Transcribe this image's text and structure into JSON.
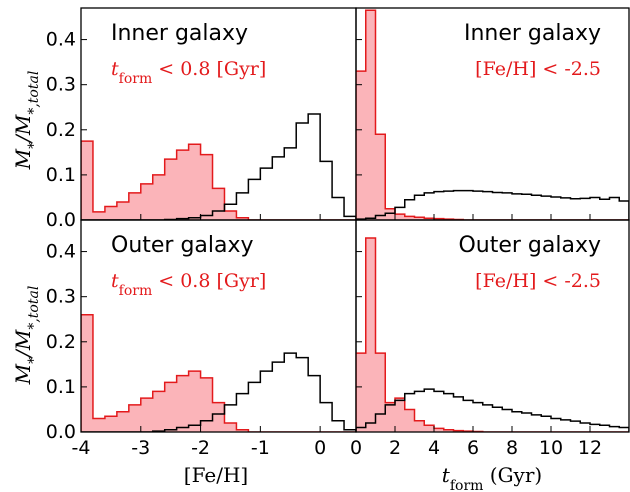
{
  "figure": {
    "y_axis_label": "M*/M*,total",
    "x_axis_labels": [
      "[Fe/H]",
      "t_form (Gyr)"
    ]
  },
  "chart_data": [
    {
      "type": "histogram",
      "panel": "top-left",
      "annotations": [
        "Inner galaxy",
        "t_form < 0.8 [Gyr]"
      ],
      "xlabel": "",
      "ylabel": "M*/M*,total",
      "xlim": [
        -4,
        0.6
      ],
      "ylim": [
        0,
        0.47
      ],
      "yticks": [
        "0.0",
        "0.1",
        "0.2",
        "0.3",
        "0.4"
      ],
      "xticks": [],
      "bin_edges": [
        -4.0,
        -3.8,
        -3.6,
        -3.4,
        -3.2,
        -3.0,
        -2.8,
        -2.6,
        -2.4,
        -2.2,
        -2.0,
        -1.8,
        -1.6,
        -1.4,
        -1.2,
        -1.0,
        -0.8,
        -0.6,
        -0.4,
        -0.2,
        0.0,
        0.2,
        0.4,
        0.6
      ],
      "series": [
        {
          "color": "#e31a1c",
          "fill": "#fbb4b9",
          "values": [
            0.175,
            0.018,
            0.03,
            0.04,
            0.06,
            0.08,
            0.1,
            0.135,
            0.155,
            0.168,
            0.145,
            0.07,
            0.02,
            0.005,
            0,
            0,
            0,
            0,
            0,
            0,
            0,
            0,
            0
          ]
        },
        {
          "color": "#000000",
          "fill": "none",
          "values": [
            0,
            0,
            0,
            0,
            0,
            0,
            0,
            0.001,
            0.003,
            0.005,
            0.01,
            0.02,
            0.035,
            0.06,
            0.09,
            0.115,
            0.14,
            0.16,
            0.215,
            0.235,
            0.13,
            0.05,
            0.008
          ]
        }
      ]
    },
    {
      "type": "histogram",
      "panel": "top-right",
      "annotations": [
        "Inner galaxy",
        "[Fe/H] < -2.5"
      ],
      "xlabel": "",
      "ylabel": "",
      "xlim": [
        0,
        14
      ],
      "ylim": [
        0,
        0.47
      ],
      "xticks": [],
      "bin_edges": [
        0.0,
        0.5,
        1.0,
        1.5,
        2.0,
        2.5,
        3.0,
        3.5,
        4.0,
        4.5,
        5.0,
        5.5,
        6.0,
        6.5,
        7.0,
        7.5,
        8.0,
        8.5,
        9.0,
        9.5,
        10.0,
        10.5,
        11.0,
        11.5,
        12.0,
        12.5,
        13.0,
        13.5,
        14.0
      ],
      "series": [
        {
          "color": "#e31a1c",
          "fill": "#fbb4b9",
          "values": [
            0.33,
            0.465,
            0.19,
            0.025,
            0.013,
            0.008,
            0.006,
            0.004,
            0.003,
            0.002,
            0.001,
            0,
            0,
            0,
            0,
            0,
            0,
            0,
            0,
            0,
            0,
            0,
            0,
            0,
            0,
            0,
            0,
            0
          ]
        },
        {
          "color": "#000000",
          "fill": "none",
          "values": [
            0.002,
            0.004,
            0.01,
            0.015,
            0.028,
            0.045,
            0.055,
            0.06,
            0.063,
            0.064,
            0.065,
            0.065,
            0.064,
            0.063,
            0.061,
            0.06,
            0.058,
            0.057,
            0.055,
            0.053,
            0.051,
            0.049,
            0.047,
            0.048,
            0.05,
            0.046,
            0.05,
            0.042
          ]
        }
      ]
    },
    {
      "type": "histogram",
      "panel": "bottom-left",
      "annotations": [
        "Outer galaxy",
        "t_form < 0.8 [Gyr]"
      ],
      "xlabel": "[Fe/H]",
      "ylabel": "M*/M*,total",
      "xlim": [
        -4,
        0.6
      ],
      "ylim": [
        0,
        0.47
      ],
      "yticks": [
        "0.0",
        "0.1",
        "0.2",
        "0.3",
        "0.4"
      ],
      "xticks": [
        "-4",
        "-3",
        "-2",
        "-1",
        "0"
      ],
      "bin_edges": [
        -4.0,
        -3.8,
        -3.6,
        -3.4,
        -3.2,
        -3.0,
        -2.8,
        -2.6,
        -2.4,
        -2.2,
        -2.0,
        -1.8,
        -1.6,
        -1.4,
        -1.2,
        -1.0,
        -0.8,
        -0.6,
        -0.4,
        -0.2,
        0.0,
        0.2,
        0.4,
        0.6
      ],
      "series": [
        {
          "color": "#e31a1c",
          "fill": "#fbb4b9",
          "values": [
            0.26,
            0.03,
            0.035,
            0.045,
            0.06,
            0.075,
            0.09,
            0.11,
            0.125,
            0.135,
            0.12,
            0.065,
            0.02,
            0.005,
            0,
            0,
            0,
            0,
            0,
            0,
            0,
            0,
            0
          ]
        },
        {
          "color": "#000000",
          "fill": "none",
          "values": [
            0,
            0,
            0,
            0,
            0,
            0,
            0.002,
            0.005,
            0.01,
            0.015,
            0.025,
            0.04,
            0.06,
            0.085,
            0.11,
            0.135,
            0.155,
            0.175,
            0.165,
            0.125,
            0.065,
            0.025,
            0.005
          ]
        }
      ]
    },
    {
      "type": "histogram",
      "panel": "bottom-right",
      "annotations": [
        "Outer galaxy",
        "[Fe/H] < -2.5"
      ],
      "xlabel": "t_form (Gyr)",
      "ylabel": "",
      "xlim": [
        0,
        14
      ],
      "ylim": [
        0,
        0.47
      ],
      "xticks": [
        "0",
        "2",
        "4",
        "6",
        "8",
        "10",
        "12"
      ],
      "bin_edges": [
        0.0,
        0.5,
        1.0,
        1.5,
        2.0,
        2.5,
        3.0,
        3.5,
        4.0,
        4.5,
        5.0,
        5.5,
        6.0,
        6.5,
        7.0,
        7.5,
        8.0,
        8.5,
        9.0,
        9.5,
        10.0,
        10.5,
        11.0,
        11.5,
        12.0,
        12.5,
        13.0,
        13.5,
        14.0
      ],
      "series": [
        {
          "color": "#e31a1c",
          "fill": "#fbb4b9",
          "values": [
            0.175,
            0.43,
            0.175,
            0.065,
            0.075,
            0.05,
            0.025,
            0.015,
            0.008,
            0.005,
            0.003,
            0.002,
            0.001,
            0,
            0,
            0,
            0,
            0,
            0,
            0,
            0,
            0,
            0,
            0,
            0,
            0,
            0,
            0
          ]
        },
        {
          "color": "#000000",
          "fill": "none",
          "values": [
            0.01,
            0.02,
            0.04,
            0.06,
            0.07,
            0.085,
            0.09,
            0.095,
            0.09,
            0.085,
            0.078,
            0.07,
            0.065,
            0.06,
            0.055,
            0.05,
            0.045,
            0.042,
            0.038,
            0.035,
            0.03,
            0.027,
            0.024,
            0.02,
            0.017,
            0.015,
            0.012,
            0.01
          ]
        }
      ]
    }
  ]
}
